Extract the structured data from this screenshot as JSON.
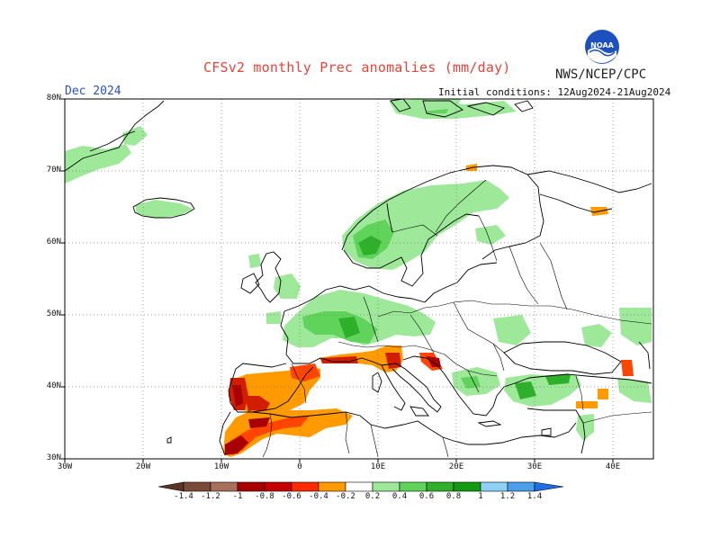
{
  "header": {
    "title": "CFSv2 monthly Prec anomalies (mm/day)",
    "agency": "NWS/NCEP/CPC",
    "period": "Dec 2024",
    "initial_conditions": "Initial conditions: 12Aug2024-21Aug2024"
  },
  "logo": {
    "icon": "noaa-logo-icon",
    "text": "NOAA"
  },
  "map": {
    "projection": "lat-lon",
    "lon_range": [
      -30,
      45
    ],
    "lat_range": [
      30,
      80
    ],
    "lat_labels": [
      "30N",
      "40N",
      "50N",
      "60N",
      "70N",
      "80N"
    ],
    "lon_labels": [
      "30W",
      "20W",
      "10W",
      "0",
      "10E",
      "20E",
      "30E",
      "40E"
    ],
    "grid": "dotted"
  },
  "colorbar": {
    "labels": [
      "-1.4",
      "-1.2",
      "-1",
      "-0.8",
      "-0.6",
      "-0.4",
      "-0.2",
      "0.2",
      "0.4",
      "0.6",
      "0.8",
      "1",
      "1.2",
      "1.4"
    ],
    "colors": [
      "#7a4a3a",
      "#a8705a",
      "#c89a84",
      "#a80000",
      "#d21e00",
      "#ff4500",
      "#ff9a00",
      "#ffffff",
      "#9ee89a",
      "#5fd35a",
      "#2fb02b",
      "#129a10",
      "#8fd0f5",
      "#4a9eea",
      "#1e6ee8"
    ]
  },
  "colors": {
    "dry_strong": "#a80000",
    "dry": "#d21e00",
    "dry_light": "#ff9a00",
    "wet_light": "#9ee89a",
    "wet": "#5fd35a",
    "wet_strong": "#129a10"
  }
}
